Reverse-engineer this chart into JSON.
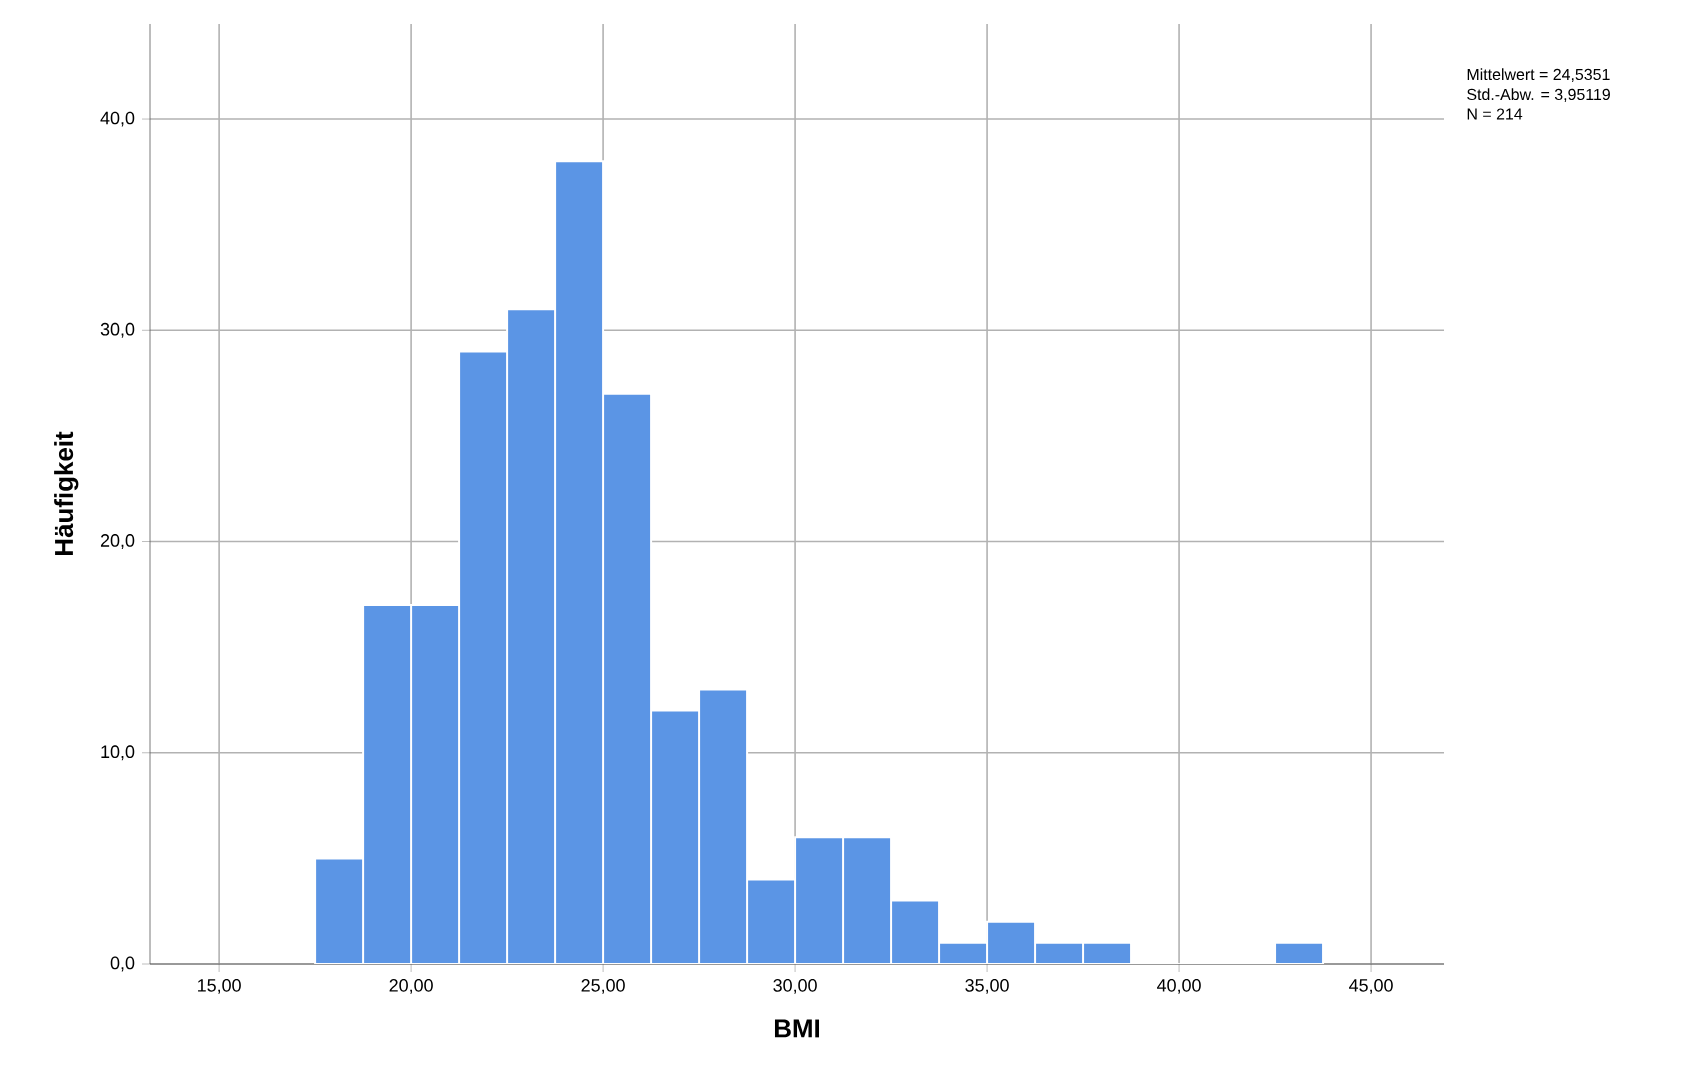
{
  "chart_data": {
    "type": "histogram",
    "xlabel": "BMI",
    "ylabel": "Häufigkeit",
    "bins": [
      17.5,
      18.75,
      20,
      21.25,
      22.5,
      23.75,
      25,
      26.25,
      27.5,
      28.75,
      30,
      31.25,
      32.5,
      33.75,
      35,
      36.25,
      37.5,
      38.75,
      40,
      41.25,
      42.5,
      43.75
    ],
    "values": [
      5,
      17,
      17,
      29,
      31,
      38,
      27,
      12,
      13,
      4,
      6,
      6,
      3,
      1,
      2,
      1,
      1,
      0,
      0,
      0,
      1
    ],
    "color": "#5b95e5",
    "xlim": [
      13.2,
      46.9
    ],
    "ylim": [
      0,
      44.5
    ],
    "xticks": [
      {
        "value": 15,
        "label": "15,00"
      },
      {
        "value": 20,
        "label": "20,00"
      },
      {
        "value": 25,
        "label": "25,00"
      },
      {
        "value": 30,
        "label": "30,00"
      },
      {
        "value": 35,
        "label": "35,00"
      },
      {
        "value": 40,
        "label": "40,00"
      },
      {
        "value": 45,
        "label": "45,00"
      }
    ],
    "yticks": [
      {
        "value": 0,
        "label": "0,0"
      },
      {
        "value": 10,
        "label": "10,0"
      },
      {
        "value": 20,
        "label": "20,0"
      },
      {
        "value": 30,
        "label": "30,0"
      },
      {
        "value": 40,
        "label": "40,0"
      }
    ],
    "grid": true,
    "annotations": [
      "Mittelwert = 24,5351",
      "Std.-Abw. = 3,95119",
      "N = 214"
    ]
  }
}
